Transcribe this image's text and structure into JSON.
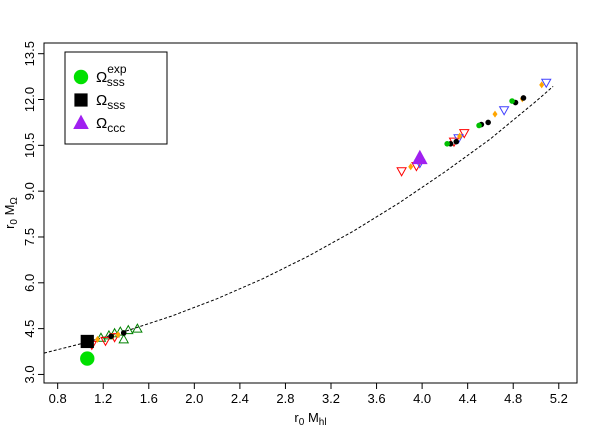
{
  "chart_data": {
    "type": "scatter",
    "xlabel": {
      "main": "r",
      "sub1": "0",
      "mid": " M",
      "sub2": "hl"
    },
    "ylabel": {
      "main": "r",
      "sub1": "0",
      "mid": " M",
      "sub2": "Ω"
    },
    "xlim": [
      0.68,
      5.36
    ],
    "ylim": [
      2.72,
      13.85
    ],
    "xticks": [
      "0.8",
      "1.2",
      "1.6",
      "2.0",
      "2.4",
      "2.8",
      "3.2",
      "3.6",
      "4.0",
      "4.4",
      "4.8",
      "5.2"
    ],
    "yticks": [
      "3.0",
      "4.5",
      "6.0",
      "7.5",
      "9.0",
      "10.5",
      "12.0",
      "13.5"
    ],
    "grid": false,
    "legend_position": "top-left",
    "legend": [
      {
        "symbol": "circle",
        "color": "#00e000",
        "label": {
          "main": "Ω",
          "sub": "sss",
          "sup": "exp"
        }
      },
      {
        "symbol": "square",
        "color": "#000000",
        "label": {
          "main": "Ω",
          "sub": "sss",
          "sup": ""
        }
      },
      {
        "symbol": "triangle-up",
        "color": "#a020f0",
        "label": {
          "main": "Ω",
          "sub": "ccc",
          "sup": ""
        }
      }
    ],
    "fit_curve": {
      "style": "dashed",
      "color": "#000000",
      "x": [
        0.68,
        1.0,
        1.4,
        1.8,
        2.2,
        2.6,
        3.0,
        3.4,
        3.8,
        4.2,
        4.6,
        5.0,
        5.15
      ],
      "y": [
        3.7,
        4.0,
        4.42,
        4.91,
        5.48,
        6.13,
        6.87,
        7.7,
        8.62,
        9.63,
        10.71,
        11.94,
        12.43
      ]
    },
    "series": [
      {
        "name": "Ω_sss^exp",
        "marker": "circle",
        "color": "#00e000",
        "x": [
          1.06
        ],
        "y": [
          3.52
        ]
      },
      {
        "name": "Ω_sss",
        "marker": "square",
        "color": "#000000",
        "x": [
          1.06
        ],
        "y": [
          4.08
        ]
      },
      {
        "name": "Ω_ccc",
        "marker": "triangle-up",
        "color": "#a020f0",
        "x": [
          3.98
        ],
        "y": [
          10.08
        ]
      },
      {
        "marker": "triangle-up-open",
        "color": "#008000",
        "x": [
          1.18,
          1.25,
          1.3,
          1.35,
          1.42,
          1.5,
          1.38
        ],
        "y": [
          4.2,
          4.28,
          4.35,
          4.4,
          4.45,
          4.5,
          4.15
        ]
      },
      {
        "marker": "triangle-down-open",
        "color": "#ff0000",
        "x": [
          1.1,
          1.22,
          1.3,
          3.82,
          3.95,
          4.37,
          4.28
        ],
        "y": [
          3.97,
          4.1,
          4.22,
          9.65,
          9.82,
          10.9,
          10.62
        ]
      },
      {
        "marker": "triangle-down-open",
        "color": "#4040ff",
        "x": [
          3.98,
          4.32,
          4.72,
          5.09
        ],
        "y": [
          9.92,
          10.73,
          11.65,
          12.55
        ]
      },
      {
        "marker": "diamond",
        "color": "#ffa500",
        "x": [
          1.15,
          1.28,
          1.33,
          3.9,
          4.33,
          4.64,
          4.88,
          5.05
        ],
        "y": [
          4.15,
          4.25,
          4.3,
          9.8,
          10.8,
          11.52,
          12.02,
          12.48
        ]
      },
      {
        "marker": "dot",
        "color": "#000000",
        "x": [
          1.27,
          1.38,
          4.25,
          4.3,
          4.52,
          4.58,
          4.82,
          4.89
        ],
        "y": [
          4.25,
          4.36,
          10.55,
          10.62,
          11.18,
          11.25,
          11.9,
          12.05
        ]
      },
      {
        "marker": "dot",
        "color": "#00c000",
        "x": [
          4.22,
          4.5,
          4.79
        ],
        "y": [
          10.55,
          11.15,
          11.95
        ]
      }
    ]
  }
}
